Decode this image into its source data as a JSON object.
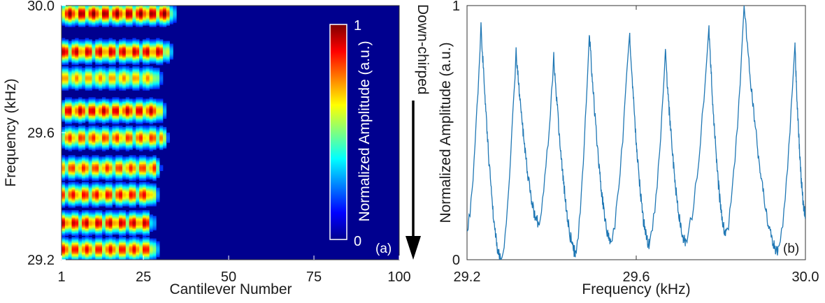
{
  "chart_data": [
    {
      "type": "heatmap",
      "panel_label": "(a)",
      "xlabel": "Cantilever Number",
      "ylabel": "Frequency (kHz)",
      "x_ticks": [
        "1",
        "25",
        "50",
        "75",
        "100"
      ],
      "x_tick_values": [
        1,
        25,
        50,
        75,
        100
      ],
      "y_ticks": [
        "29.2",
        "29.6",
        "30.0"
      ],
      "y_tick_values": [
        29.2,
        29.6,
        30.0
      ],
      "xlim": [
        1,
        100
      ],
      "ylim": [
        29.2,
        30.0
      ],
      "colorbar": {
        "label": "Normalized Amplitude (a.u.)",
        "min_label": "0",
        "max_label": "1",
        "range": [
          0,
          1
        ],
        "colormap": "jet"
      },
      "annotation": "Down-chirped",
      "bands": [
        {
          "center": 29.233,
          "extent": 27,
          "strength": 0.9
        },
        {
          "center": 29.316,
          "extent": 26,
          "strength": 0.95
        },
        {
          "center": 29.405,
          "extent": 27,
          "strength": 0.9
        },
        {
          "center": 29.489,
          "extent": 28,
          "strength": 0.85
        },
        {
          "center": 29.584,
          "extent": 30,
          "strength": 0.85
        },
        {
          "center": 29.669,
          "extent": 29,
          "strength": 0.95
        },
        {
          "center": 29.772,
          "extent": 28,
          "strength": 0.75
        },
        {
          "center": 29.855,
          "extent": 31,
          "strength": 0.95
        },
        {
          "center": 29.975,
          "extent": 32,
          "strength": 1.0
        }
      ],
      "colors": {
        "background": "#00008f",
        "low": "#0000b4",
        "high": "#8b0000"
      }
    },
    {
      "type": "line",
      "panel_label": "(b)",
      "xlabel": "Frequency (kHz)",
      "ylabel": "Normalized Amplitude (a.u.)",
      "x_ticks": [
        "29.2",
        "29.6",
        "30.0"
      ],
      "x_tick_values": [
        29.2,
        29.6,
        30.0
      ],
      "y_ticks": [
        "0",
        "1"
      ],
      "y_tick_values": [
        0,
        1
      ],
      "xlim": [
        29.2,
        30.0
      ],
      "ylim": [
        0,
        1
      ],
      "line_color": "#1f77b4",
      "peaks": [
        {
          "x": 29.233,
          "y": 0.93
        },
        {
          "x": 29.316,
          "y": 0.82
        },
        {
          "x": 29.405,
          "y": 0.8
        },
        {
          "x": 29.489,
          "y": 0.9
        },
        {
          "x": 29.584,
          "y": 0.9
        },
        {
          "x": 29.669,
          "y": 0.81
        },
        {
          "x": 29.772,
          "y": 0.9
        },
        {
          "x": 29.855,
          "y": 1.0
        },
        {
          "x": 29.975,
          "y": 0.85
        }
      ],
      "troughs": [
        {
          "x": 29.2,
          "y": 0.12
        },
        {
          "x": 29.28,
          "y": 0.0
        },
        {
          "x": 29.368,
          "y": 0.15
        },
        {
          "x": 29.456,
          "y": 0.03
        },
        {
          "x": 29.54,
          "y": 0.07
        },
        {
          "x": 29.63,
          "y": 0.06
        },
        {
          "x": 29.716,
          "y": 0.07
        },
        {
          "x": 29.812,
          "y": 0.1
        },
        {
          "x": 29.935,
          "y": 0.03
        },
        {
          "x": 30.0,
          "y": 0.18
        }
      ]
    }
  ]
}
